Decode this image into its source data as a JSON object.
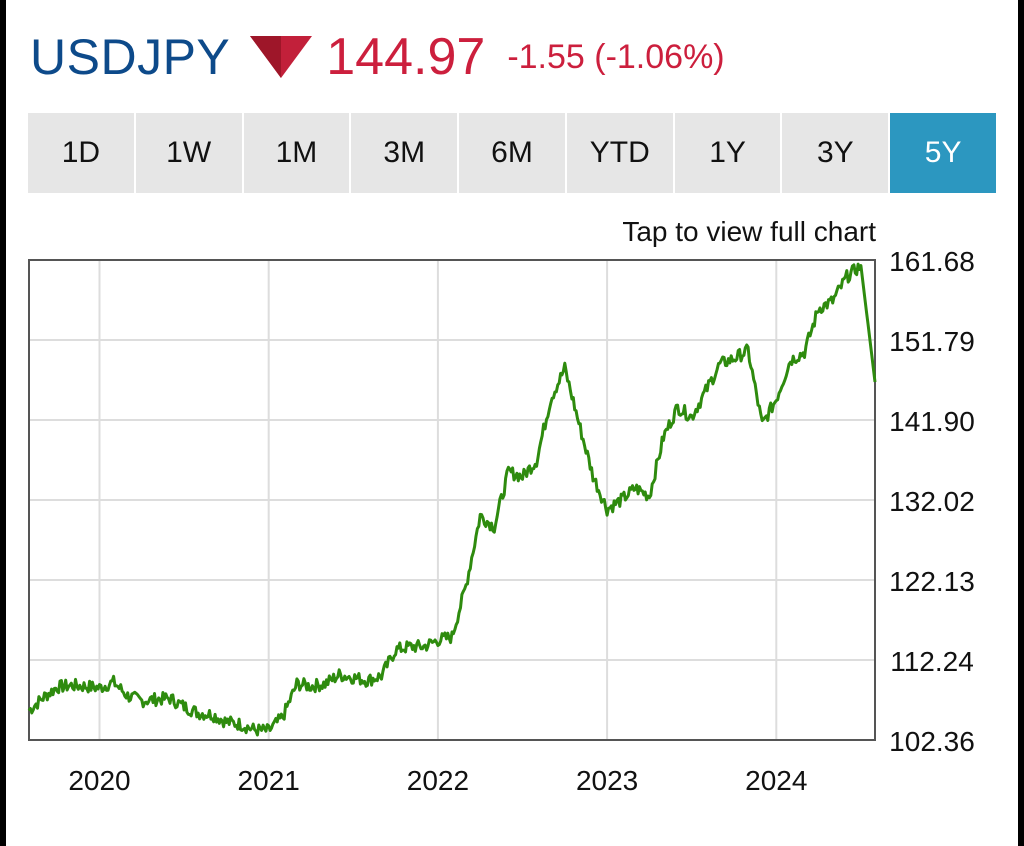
{
  "header": {
    "symbol": "USDJPY",
    "direction_icon": "down-triangle-icon",
    "price": "144.97",
    "change": "-1.55 (-1.06%)"
  },
  "ranges": [
    {
      "label": "1D",
      "active": false
    },
    {
      "label": "1W",
      "active": false
    },
    {
      "label": "1M",
      "active": false
    },
    {
      "label": "3M",
      "active": false
    },
    {
      "label": "6M",
      "active": false
    },
    {
      "label": "YTD",
      "active": false
    },
    {
      "label": "1Y",
      "active": false
    },
    {
      "label": "3Y",
      "active": false
    },
    {
      "label": "5Y",
      "active": true
    }
  ],
  "hint": "Tap to view full chart",
  "colors": {
    "symbol": "#0d4a8a",
    "negative": "#cc1f3d",
    "active_range": "#2c97c0",
    "line": "#2e8b0e",
    "grid": "#dddddd"
  },
  "chart_data": {
    "type": "line",
    "title": "",
    "xlabel": "",
    "ylabel": "",
    "x_ticks": [
      "2020",
      "2021",
      "2022",
      "2023",
      "2024"
    ],
    "y_ticks": [
      "102.36",
      "112.24",
      "122.13",
      "132.02",
      "141.90",
      "151.79",
      "161.68"
    ],
    "ylim": [
      102.36,
      161.68
    ],
    "xlim": [
      "2019-08",
      "2024-08"
    ],
    "grid": true,
    "legend": "none",
    "series": [
      {
        "name": "",
        "x": [
          "2019-08",
          "2019-09",
          "2019-10",
          "2019-11",
          "2019-12",
          "2020-01",
          "2020-02",
          "2020-03",
          "2020-04",
          "2020-05",
          "2020-06",
          "2020-07",
          "2020-08",
          "2020-09",
          "2020-10",
          "2020-11",
          "2020-12",
          "2021-01",
          "2021-02",
          "2021-03",
          "2021-04",
          "2021-05",
          "2021-06",
          "2021-07",
          "2021-08",
          "2021-09",
          "2021-10",
          "2021-11",
          "2021-12",
          "2022-01",
          "2022-02",
          "2022-03",
          "2022-04",
          "2022-05",
          "2022-06",
          "2022-07",
          "2022-08",
          "2022-09",
          "2022-10",
          "2022-11",
          "2022-12",
          "2023-01",
          "2023-02",
          "2023-03",
          "2023-04",
          "2023-05",
          "2023-06",
          "2023-07",
          "2023-08",
          "2023-09",
          "2023-10",
          "2023-11",
          "2023-12",
          "2024-01",
          "2024-02",
          "2024-03",
          "2024-04",
          "2024-05",
          "2024-06",
          "2024-07",
          "2024-08"
        ],
        "y": [
          106.0,
          107.6,
          108.9,
          109.1,
          109.0,
          108.8,
          109.5,
          107.8,
          107.2,
          107.4,
          107.5,
          106.5,
          105.7,
          105.5,
          104.6,
          104.3,
          103.6,
          103.5,
          105.2,
          109.3,
          109.0,
          109.3,
          110.4,
          110.1,
          109.7,
          110.3,
          113.5,
          113.9,
          113.9,
          114.7,
          115.1,
          121.5,
          130.1,
          128.7,
          135.5,
          134.9,
          136.9,
          144.5,
          148.3,
          141.5,
          135.0,
          130.9,
          132.0,
          133.5,
          132.5,
          139.8,
          143.5,
          142.3,
          145.5,
          148.8,
          149.5,
          150.5,
          141.3,
          144.5,
          149.3,
          150.3,
          155.7,
          156.6,
          159.6,
          161.0,
          146.6
        ]
      }
    ]
  }
}
